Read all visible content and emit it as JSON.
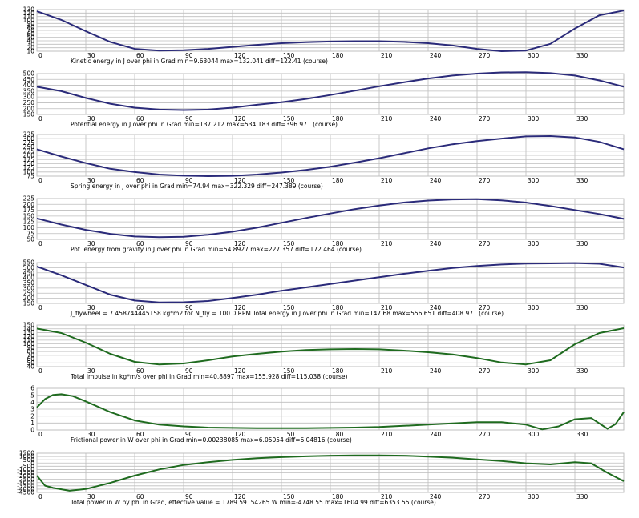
{
  "chart_data": [
    {
      "type": "line",
      "color": "#2b2b7a",
      "x": [
        0,
        15,
        30,
        45,
        60,
        75,
        90,
        105,
        120,
        135,
        150,
        165,
        180,
        195,
        210,
        225,
        240,
        255,
        270,
        285,
        300,
        315,
        330,
        345,
        360
      ],
      "y": [
        130,
        104,
        70,
        38,
        17,
        12,
        13,
        17,
        23,
        29,
        34,
        37,
        39,
        40,
        40,
        38,
        34,
        27,
        17,
        10,
        12,
        32,
        78,
        118,
        132
      ],
      "ylim": [
        10,
        135
      ],
      "yticks": [
        "130",
        "120",
        "110",
        "100",
        "90",
        "80",
        "70",
        "60",
        "50",
        "40",
        "30",
        "20",
        "10"
      ],
      "caption": "Kinetic energy in J over phi in Grad  min=9.63044  max=132.041  diff=122.41 (course)"
    },
    {
      "type": "line",
      "color": "#2b2b7a",
      "x": [
        0,
        15,
        30,
        45,
        60,
        75,
        90,
        105,
        120,
        135,
        150,
        165,
        180,
        195,
        210,
        225,
        240,
        255,
        270,
        285,
        300,
        315,
        330,
        345,
        360
      ],
      "y": [
        385,
        340,
        270,
        210,
        170,
        150,
        145,
        150,
        170,
        200,
        225,
        260,
        300,
        345,
        390,
        430,
        470,
        500,
        520,
        532,
        534,
        525,
        500,
        450,
        385
      ],
      "ylim": [
        100,
        520
      ],
      "yticks": [
        "500",
        "450",
        "400",
        "350",
        "300",
        "250",
        "200",
        "150"
      ],
      "caption": "Potential energy in J over phi in Grad  min=137.212  max=534.183  diff=396.971 (course)"
    },
    {
      "type": "line",
      "color": "#2b2b7a",
      "x": [
        0,
        15,
        30,
        45,
        60,
        75,
        90,
        105,
        120,
        135,
        150,
        165,
        180,
        195,
        210,
        225,
        240,
        255,
        270,
        285,
        300,
        315,
        330,
        345,
        360
      ],
      "y": [
        240,
        195,
        155,
        120,
        100,
        85,
        78,
        75,
        77,
        85,
        97,
        113,
        133,
        158,
        185,
        215,
        245,
        270,
        290,
        305,
        318,
        320,
        312,
        285,
        240
      ],
      "ylim": [
        75,
        330
      ],
      "yticks": [
        "325",
        "300",
        "275",
        "250",
        "225",
        "200",
        "175",
        "150",
        "125",
        "100",
        "75"
      ],
      "caption": "Spring energy in J over phi in Grad  min=74.94  max=322.329  diff=247.389 (course)"
    },
    {
      "type": "line",
      "color": "#2b2b7a",
      "x": [
        0,
        15,
        30,
        45,
        60,
        75,
        90,
        105,
        120,
        135,
        150,
        165,
        180,
        195,
        210,
        225,
        240,
        255,
        270,
        285,
        300,
        315,
        330,
        345,
        360
      ],
      "y": [
        140,
        112,
        88,
        70,
        58,
        55,
        57,
        66,
        80,
        98,
        120,
        142,
        162,
        182,
        198,
        212,
        221,
        226,
        227,
        222,
        212,
        196,
        178,
        160,
        138
      ],
      "ylim": [
        45,
        230
      ],
      "yticks": [
        "225",
        "200",
        "175",
        "150",
        "125",
        "100",
        "75",
        "50"
      ],
      "caption": "Pot. energy from gravity in J over phi in Grad  min=54.8927  max=227.357  diff=172.464 (course)"
    },
    {
      "type": "line",
      "color": "#2b2b7a",
      "x": [
        0,
        15,
        30,
        45,
        60,
        75,
        90,
        105,
        120,
        135,
        150,
        165,
        180,
        195,
        210,
        225,
        240,
        255,
        270,
        285,
        300,
        315,
        330,
        345,
        360
      ],
      "y": [
        520,
        430,
        330,
        230,
        170,
        150,
        152,
        165,
        195,
        230,
        270,
        305,
        340,
        375,
        410,
        445,
        475,
        505,
        525,
        540,
        550,
        552,
        555,
        548,
        510
      ],
      "ylim": [
        140,
        560
      ],
      "yticks": [
        "550",
        "500",
        "450",
        "400",
        "350",
        "300",
        "250",
        "200",
        "150"
      ],
      "caption": "J_flywheel = 7.458744445158 kg*m2 for N_fly = 100.0 RPM       Total energy in J over phi in Grad  min=147.68  max=556.651  diff=408.971 (course)"
    },
    {
      "type": "line",
      "color": "#1f6b1f",
      "x": [
        0,
        15,
        30,
        45,
        60,
        75,
        90,
        105,
        120,
        135,
        150,
        165,
        180,
        195,
        210,
        225,
        240,
        255,
        270,
        285,
        300,
        315,
        330,
        345,
        360
      ],
      "y": [
        154,
        140,
        110,
        75,
        50,
        42,
        45,
        55,
        67,
        75,
        82,
        87,
        89,
        90,
        89,
        85,
        80,
        73,
        62,
        48,
        42,
        55,
        105,
        140,
        155
      ],
      "ylim": [
        35,
        165
      ],
      "yticks": [
        "150",
        "140",
        "130",
        "120",
        "110",
        "100",
        "90",
        "80",
        "70",
        "60",
        "50",
        "40"
      ],
      "caption": "Total impulse in kg*m/s over phi in Grad  min=40.8897  max=155.928  diff=115.038 (course)"
    },
    {
      "type": "line",
      "color": "#1f6b1f",
      "x": [
        0,
        5,
        10,
        15,
        22,
        30,
        45,
        60,
        75,
        90,
        105,
        120,
        135,
        150,
        165,
        180,
        195,
        210,
        225,
        240,
        255,
        270,
        285,
        300,
        310,
        320,
        330,
        340,
        350,
        355,
        360
      ],
      "y": [
        3.8,
        5.2,
        5.9,
        6.0,
        5.7,
        4.8,
        3.0,
        1.6,
        0.9,
        0.6,
        0.4,
        0.35,
        0.3,
        0.3,
        0.3,
        0.35,
        0.4,
        0.5,
        0.7,
        0.9,
        1.1,
        1.3,
        1.3,
        0.9,
        0.1,
        0.6,
        1.8,
        2.0,
        0.2,
        1.0,
        3.0
      ],
      "ylim": [
        0,
        7
      ],
      "yticks": [
        "6",
        "5",
        "4",
        "3",
        "2",
        "1",
        "0"
      ],
      "caption": "Frictional power in W over phi in Grad  min=0.00238085  max=6.05054  diff=6.04816 (course)"
    },
    {
      "type": "line",
      "color": "#1f6b1f",
      "x": [
        0,
        5,
        10,
        20,
        30,
        45,
        60,
        75,
        90,
        105,
        120,
        135,
        150,
        165,
        180,
        195,
        210,
        225,
        240,
        255,
        270,
        285,
        300,
        315,
        330,
        340,
        350,
        360
      ],
      "y": [
        -2000,
        -3800,
        -4200,
        -4700,
        -4400,
        -3300,
        -2000,
        -900,
        -100,
        400,
        800,
        1100,
        1300,
        1450,
        1550,
        1600,
        1600,
        1550,
        1400,
        1200,
        900,
        600,
        200,
        0,
        400,
        200,
        -1500,
        -3000
      ],
      "ylim": [
        -5000,
        2000
      ],
      "yticks": [
        "1500",
        "1000",
        "500",
        "0",
        "-500",
        "-1000",
        "-1500",
        "-2000",
        "-2500",
        "-3000",
        "-3500",
        "-4000",
        "-4500"
      ],
      "caption": "Total power in W by phi in Grad, effective value = 1789.59154265 W  min=-4748.55  max=1604.99  diff=6353.55 (course)"
    }
  ],
  "xticks": [
    "0",
    "30",
    "60",
    "90",
    "120",
    "150",
    "180",
    "210",
    "240",
    "270",
    "300",
    "330"
  ]
}
